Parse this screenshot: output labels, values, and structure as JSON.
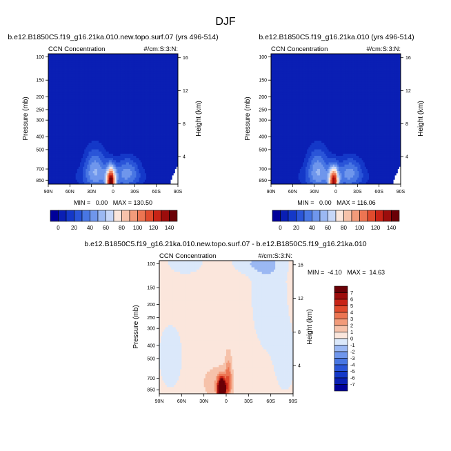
{
  "figure": {
    "title": "DJF"
  },
  "colors": {
    "seq": [
      "#000099",
      "#0a1fb4",
      "#1438c8",
      "#2a55d8",
      "#4876e3",
      "#6f96ec",
      "#9bb8f3",
      "#c6d6f8",
      "#fbe6dc",
      "#f6c2aa",
      "#f29b7a",
      "#ec7552",
      "#e04b2d",
      "#c82316",
      "#9c0d0c",
      "#6a0006"
    ],
    "div": [
      "#000099",
      "#0a1fb4",
      "#1438c8",
      "#2a55d8",
      "#4876e3",
      "#6f96ec",
      "#9bb8f3",
      "#dbe8fa",
      "#fbe6dc",
      "#f6c2aa",
      "#f29b7a",
      "#ec7552",
      "#e04b2d",
      "#c82316",
      "#9c0d0c",
      "#6a0006"
    ],
    "mask": "#ffffff"
  },
  "panels": [
    {
      "case": "b.e12.B1850C5.f19_g16.21ka.010.new.topo.surf.07 (yrs 496-514)",
      "left_label": "CCN Concentration",
      "right_label": "#/cm:S:3:N:",
      "ylabel": "Pressure (mb)",
      "ylabel_right": "Height (km)",
      "stats": "MIN =   0.00   MAX = 130.50"
    },
    {
      "case": "b.e12.B1850C5.f19_g16.21ka.010 (yrs 496-514)",
      "left_label": "CCN Concentration",
      "right_label": "#/cm:S:3:N:",
      "ylabel": "Pressure (mb)",
      "ylabel_right": "Height (km)",
      "stats": "MIN =   0.00   MAX = 116.06"
    },
    {
      "case": "b.e12.B1850C5.f19_g16.21ka.010.new.topo.surf.07 - b.e12.B1850C5.f19_g16.21ka.010",
      "left_label": "CCN Concentration",
      "right_label": "#/cm:S:3:N:",
      "ylabel": "Pressure (mb)",
      "ylabel_right": "Height (km)",
      "stats": "MIN =  -4.10   MAX =  14.63"
    }
  ],
  "axes": {
    "x_ticks": [
      "90N",
      "60N",
      "30N",
      "0",
      "30S",
      "60S",
      "90S"
    ],
    "p_ticks": [
      "100",
      "150",
      "200",
      "250",
      "300",
      "400",
      "500",
      "700",
      "850"
    ],
    "p_values": [
      100,
      150,
      200,
      250,
      300,
      400,
      500,
      700,
      850
    ],
    "p_range": [
      95,
      910
    ],
    "z_ticks": [
      "4",
      "8",
      "12",
      "16"
    ]
  },
  "colorbars": {
    "horizontal_labels": [
      "0",
      "20",
      "40",
      "60",
      "80",
      "100",
      "120",
      "140"
    ],
    "vertical_labels": [
      "7",
      "6",
      "5",
      "4",
      "3",
      "2",
      "1",
      "0",
      "-1",
      "-2",
      "-3",
      "-4",
      "-5",
      "-6",
      "-7"
    ]
  },
  "chart_data": [
    {
      "type": "heatmap",
      "title": "b.e12.B1850C5.f19_g16.21ka.010.new.topo.surf.07 (yrs 496-514)",
      "variable": "CCN Concentration",
      "units": "#/cm:S:3:N:",
      "xlabel": "",
      "ylabel": "Pressure (mb)",
      "ylabel_right": "Height (km)",
      "x_range": [
        90,
        -90
      ],
      "y_range_mb": [
        100,
        850
      ],
      "min": 0.0,
      "max": 130.5,
      "contour_levels": [
        0,
        10,
        20,
        30,
        40,
        50,
        60,
        70,
        80,
        90,
        100,
        110,
        120,
        130,
        140
      ],
      "features": [
        {
          "lat": 3,
          "p_mb": 850,
          "value": 130.5
        },
        {
          "lat": 25,
          "p_mb": 560,
          "value": 40
        },
        {
          "lat": -20,
          "p_mb": 650,
          "value": 30
        }
      ]
    },
    {
      "type": "heatmap",
      "title": "b.e12.B1850C5.f19_g16.21ka.010 (yrs 496-514)",
      "variable": "CCN Concentration",
      "units": "#/cm:S:3:N:",
      "xlabel": "",
      "ylabel": "Pressure (mb)",
      "ylabel_right": "Height (km)",
      "x_range": [
        90,
        -90
      ],
      "y_range_mb": [
        100,
        850
      ],
      "min": 0.0,
      "max": 116.06,
      "contour_levels": [
        0,
        10,
        20,
        30,
        40,
        50,
        60,
        70,
        80,
        90,
        100,
        110,
        120,
        130,
        140
      ],
      "features": [
        {
          "lat": 3,
          "p_mb": 850,
          "value": 116.06
        },
        {
          "lat": 25,
          "p_mb": 560,
          "value": 40
        },
        {
          "lat": -20,
          "p_mb": 650,
          "value": 30
        }
      ]
    },
    {
      "type": "heatmap",
      "title": "b.e12.B1850C5.f19_g16.21ka.010.new.topo.surf.07 - b.e12.B1850C5.f19_g16.21ka.010",
      "variable": "CCN Concentration",
      "units": "#/cm:S:3:N:",
      "xlabel": "",
      "ylabel": "Pressure (mb)",
      "ylabel_right": "Height (km)",
      "x_range": [
        90,
        -90
      ],
      "y_range_mb": [
        100,
        850
      ],
      "min": -4.1,
      "max": 14.63,
      "contour_levels": [
        -7,
        -6,
        -5,
        -4,
        -3,
        -2,
        -1,
        0,
        1,
        2,
        3,
        4,
        5,
        6,
        7
      ],
      "features": [
        {
          "lat": 5,
          "p_mb": 830,
          "value": 14.63
        },
        {
          "lat": 30,
          "p_mb": 500,
          "value": 0.5
        },
        {
          "lat": 70,
          "p_mb": 650,
          "value": -0.5
        },
        {
          "lat": -55,
          "p_mb": 200,
          "value": -0.5
        }
      ]
    }
  ]
}
